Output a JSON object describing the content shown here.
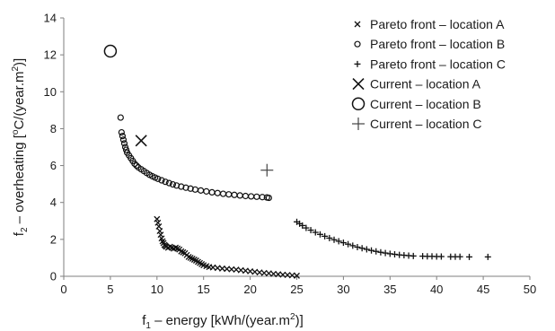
{
  "chart_data": {
    "type": "scatter",
    "xlabel": {
      "prefix": "f",
      "sub": "1",
      "rest": " – energy   [kWh/(year.m",
      "sup": "2",
      "end": ")]"
    },
    "ylabel": {
      "prefix": "f",
      "sub": "2",
      "rest": " – overheating  [",
      "sup1": "o",
      "mid": "C/(year.m",
      "sup2": "2",
      "end": ")]"
    },
    "xlim": [
      0,
      50
    ],
    "ylim": [
      0,
      14
    ],
    "xticks": [
      0,
      5,
      10,
      15,
      20,
      25,
      30,
      35,
      40,
      45,
      50
    ],
    "yticks": [
      0,
      2,
      4,
      6,
      8,
      10,
      12,
      14
    ],
    "xtick_labels": [
      "0",
      "5",
      "10",
      "15",
      "20",
      "25",
      "30",
      "35",
      "40",
      "45",
      "50"
    ],
    "ytick_labels": [
      "0",
      "2",
      "4",
      "6",
      "8",
      "10",
      "12",
      "14"
    ],
    "grid": false,
    "legend_position": "right",
    "series": [
      {
        "name": "Pareto front – location A",
        "marker": "x-small",
        "x": [
          10.0,
          10.1,
          10.2,
          10.3,
          10.4,
          10.5,
          10.6,
          10.7,
          10.8,
          10.9,
          11.0,
          11.2,
          11.4,
          11.6,
          11.8,
          12.0,
          12.2,
          12.4,
          12.6,
          12.8,
          13.0,
          13.2,
          13.4,
          13.6,
          13.8,
          14.0,
          14.2,
          14.4,
          14.6,
          14.8,
          15.0,
          15.3,
          15.6,
          16.0,
          16.5,
          17.0,
          17.5,
          18.0,
          18.5,
          19.0,
          19.5,
          20.0,
          20.5,
          21.0,
          21.5,
          22.0,
          22.5,
          23.0,
          23.5,
          24.0,
          24.5,
          25.0
        ],
        "y": [
          3.1,
          2.9,
          2.7,
          2.45,
          2.25,
          2.05,
          1.9,
          1.8,
          1.7,
          1.65,
          1.6,
          1.55,
          1.6,
          1.55,
          1.5,
          1.55,
          1.5,
          1.45,
          1.35,
          1.3,
          1.25,
          1.15,
          1.05,
          1.0,
          0.95,
          0.9,
          0.85,
          0.78,
          0.72,
          0.66,
          0.6,
          0.55,
          0.5,
          0.48,
          0.45,
          0.42,
          0.4,
          0.38,
          0.36,
          0.33,
          0.3,
          0.27,
          0.24,
          0.21,
          0.18,
          0.16,
          0.13,
          0.11,
          0.09,
          0.07,
          0.05,
          0.03
        ]
      },
      {
        "name": "Pareto front – location B",
        "marker": "o-small",
        "x": [
          6.1,
          6.2,
          6.3,
          6.4,
          6.5,
          6.6,
          6.7,
          6.8,
          7.0,
          7.2,
          7.4,
          7.6,
          7.8,
          8.0,
          8.3,
          8.6,
          8.9,
          9.2,
          9.5,
          9.8,
          10.1,
          10.5,
          10.9,
          11.3,
          11.7,
          12.1,
          12.6,
          13.1,
          13.6,
          14.1,
          14.7,
          15.3,
          15.9,
          16.5,
          17.1,
          17.7,
          18.3,
          18.9,
          19.5,
          20.1,
          20.7,
          21.3,
          21.8,
          22.0
        ],
        "y": [
          8.6,
          7.8,
          7.6,
          7.4,
          7.2,
          7.0,
          6.85,
          6.7,
          6.55,
          6.4,
          6.25,
          6.1,
          6.0,
          5.9,
          5.8,
          5.7,
          5.6,
          5.5,
          5.42,
          5.35,
          5.28,
          5.2,
          5.12,
          5.05,
          4.98,
          4.92,
          4.86,
          4.8,
          4.75,
          4.7,
          4.65,
          4.6,
          4.55,
          4.51,
          4.47,
          4.44,
          4.41,
          4.38,
          4.35,
          4.33,
          4.31,
          4.29,
          4.27,
          4.25
        ]
      },
      {
        "name": "Pareto front – location C",
        "marker": "plus-small",
        "x": [
          25.0,
          25.3,
          25.6,
          26.0,
          26.5,
          27.0,
          27.5,
          28.0,
          28.5,
          29.0,
          29.5,
          30.0,
          30.5,
          31.0,
          31.5,
          32.0,
          32.5,
          33.0,
          33.5,
          34.0,
          34.5,
          35.0,
          35.5,
          36.0,
          36.5,
          37.0,
          37.5,
          38.5,
          39.0,
          39.5,
          40.0,
          40.5,
          41.5,
          42.0,
          42.5,
          43.5,
          45.5
        ],
        "y": [
          2.95,
          2.85,
          2.75,
          2.62,
          2.5,
          2.38,
          2.27,
          2.17,
          2.07,
          1.98,
          1.9,
          1.82,
          1.74,
          1.66,
          1.58,
          1.52,
          1.46,
          1.4,
          1.35,
          1.3,
          1.26,
          1.22,
          1.19,
          1.16,
          1.14,
          1.12,
          1.1,
          1.09,
          1.08,
          1.08,
          1.07,
          1.07,
          1.06,
          1.06,
          1.06,
          1.05,
          1.05
        ]
      },
      {
        "name": "Current – location A",
        "marker": "x-large",
        "x": [
          8.3
        ],
        "y": [
          7.35
        ]
      },
      {
        "name": "Current – location B",
        "marker": "o-large",
        "x": [
          5.0
        ],
        "y": [
          12.2
        ]
      },
      {
        "name": "Current – location C",
        "marker": "plus-large",
        "x": [
          21.8
        ],
        "y": [
          5.75
        ]
      }
    ]
  }
}
